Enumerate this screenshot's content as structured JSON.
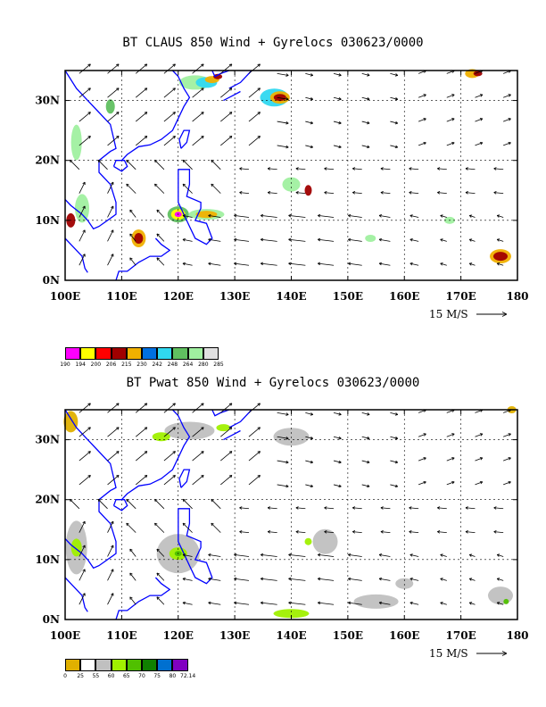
{
  "map1": {
    "title": "BT CLAUS 850 Wind + Gyrelocs 030623/0000",
    "x_ticks": [
      "100E",
      "110E",
      "120E",
      "130E",
      "140E",
      "150E",
      "160E",
      "170E",
      "180"
    ],
    "y_ticks": [
      "0N",
      "10N",
      "20N",
      "30N"
    ],
    "scale_label": "15 M/S",
    "legend": {
      "colors": [
        "#ff00ff",
        "#ffff00",
        "#ff0000",
        "#a00000",
        "#f0b000",
        "#0070e0",
        "#30d8f0",
        "#60c060",
        "#a0f0a0",
        "#e0e0e0"
      ],
      "labels": [
        "190",
        "194",
        "200",
        "206",
        "215",
        "230",
        "242",
        "248",
        "264",
        "280",
        "285"
      ]
    }
  },
  "map2": {
    "title": "BT Pwat 850 Wind + Gyrelocs 030623/0000",
    "x_ticks": [
      "100E",
      "110E",
      "120E",
      "130E",
      "140E",
      "150E",
      "160E",
      "170E",
      "180"
    ],
    "y_ticks": [
      "0N",
      "10N",
      "20N",
      "30N"
    ],
    "scale_label": "15 M/S",
    "legend": {
      "colors": [
        "#e0b000",
        "#ffffff",
        "#c0c0c0",
        "#a0f000",
        "#50c000",
        "#108000",
        "#0070d0",
        "#8000c0"
      ],
      "labels": [
        "0",
        "25",
        "55",
        "60",
        "65",
        "70",
        "75",
        "80",
        "72.14"
      ]
    }
  }
}
